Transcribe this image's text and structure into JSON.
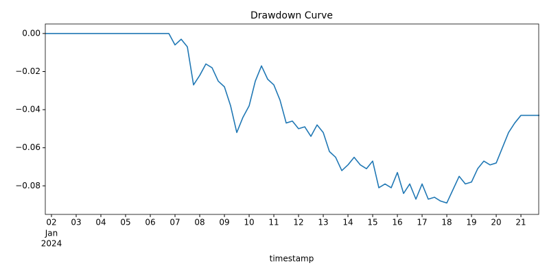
{
  "chart_data": {
    "type": "line",
    "title": "Drawdown Curve",
    "xlabel": "timestamp",
    "annotations": [
      "Jan",
      "2024"
    ],
    "x": [
      1.75,
      2,
      2.25,
      2.5,
      2.75,
      3,
      3.25,
      3.5,
      3.75,
      4,
      4.25,
      4.5,
      4.75,
      5,
      5.25,
      5.5,
      5.75,
      6,
      6.25,
      6.5,
      6.75,
      7,
      7.25,
      7.5,
      7.75,
      8,
      8.25,
      8.5,
      8.75,
      9,
      9.25,
      9.5,
      9.75,
      10,
      10.25,
      10.5,
      10.75,
      11,
      11.25,
      11.5,
      11.75,
      12,
      12.25,
      12.5,
      12.75,
      13,
      13.25,
      13.5,
      13.75,
      14,
      14.25,
      14.5,
      14.75,
      15,
      15.25,
      15.5,
      15.75,
      16,
      16.25,
      16.5,
      16.75,
      17,
      17.25,
      17.5,
      17.75,
      18,
      18.25,
      18.5,
      18.75,
      19,
      19.25,
      19.5,
      19.75,
      20,
      20.25,
      20.5,
      20.75,
      21,
      21.25,
      21.5,
      21.75
    ],
    "series": [
      {
        "color": "#1f77b4",
        "values": [
          0,
          0,
          0,
          0,
          0,
          0,
          0,
          0,
          0,
          0,
          0,
          0,
          0,
          0,
          0,
          0,
          0,
          0,
          0,
          0,
          0,
          -0.006,
          -0.003,
          -0.007,
          -0.027,
          -0.022,
          -0.016,
          -0.018,
          -0.025,
          -0.028,
          -0.038,
          -0.052,
          -0.044,
          -0.038,
          -0.025,
          -0.017,
          -0.024,
          -0.027,
          -0.035,
          -0.047,
          -0.046,
          -0.05,
          -0.049,
          -0.054,
          -0.048,
          -0.052,
          -0.062,
          -0.065,
          -0.072,
          -0.069,
          -0.065,
          -0.069,
          -0.071,
          -0.067,
          -0.081,
          -0.079,
          -0.081,
          -0.073,
          -0.084,
          -0.079,
          -0.087,
          -0.079,
          -0.087,
          -0.086,
          -0.088,
          -0.089,
          -0.082,
          -0.075,
          -0.079,
          -0.078,
          -0.071,
          -0.067,
          -0.069,
          -0.068,
          -0.06,
          -0.052,
          -0.047,
          -0.043,
          -0.043,
          -0.043,
          -0.043
        ]
      }
    ],
    "xlim": [
      1.75,
      21.72
    ],
    "xticks": [
      {
        "value": 2,
        "label": "02"
      },
      {
        "value": 3,
        "label": "03"
      },
      {
        "value": 4,
        "label": "04"
      },
      {
        "value": 5,
        "label": "05"
      },
      {
        "value": 6,
        "label": "06"
      },
      {
        "value": 7,
        "label": "07"
      },
      {
        "value": 8,
        "label": "08"
      },
      {
        "value": 9,
        "label": "09"
      },
      10,
      11,
      12,
      13,
      14,
      15,
      16,
      17,
      18,
      19,
      20,
      21
    ],
    "ylim": [
      -0.095,
      0.005
    ],
    "yticks": [
      {
        "value": 0,
        "label": "0.00"
      },
      {
        "value": -0.02,
        "label": "−0.02"
      },
      {
        "value": -0.04,
        "label": "−0.04"
      },
      {
        "value": -0.06,
        "label": "−0.06"
      },
      {
        "value": -0.08,
        "label": "−0.08"
      }
    ]
  }
}
